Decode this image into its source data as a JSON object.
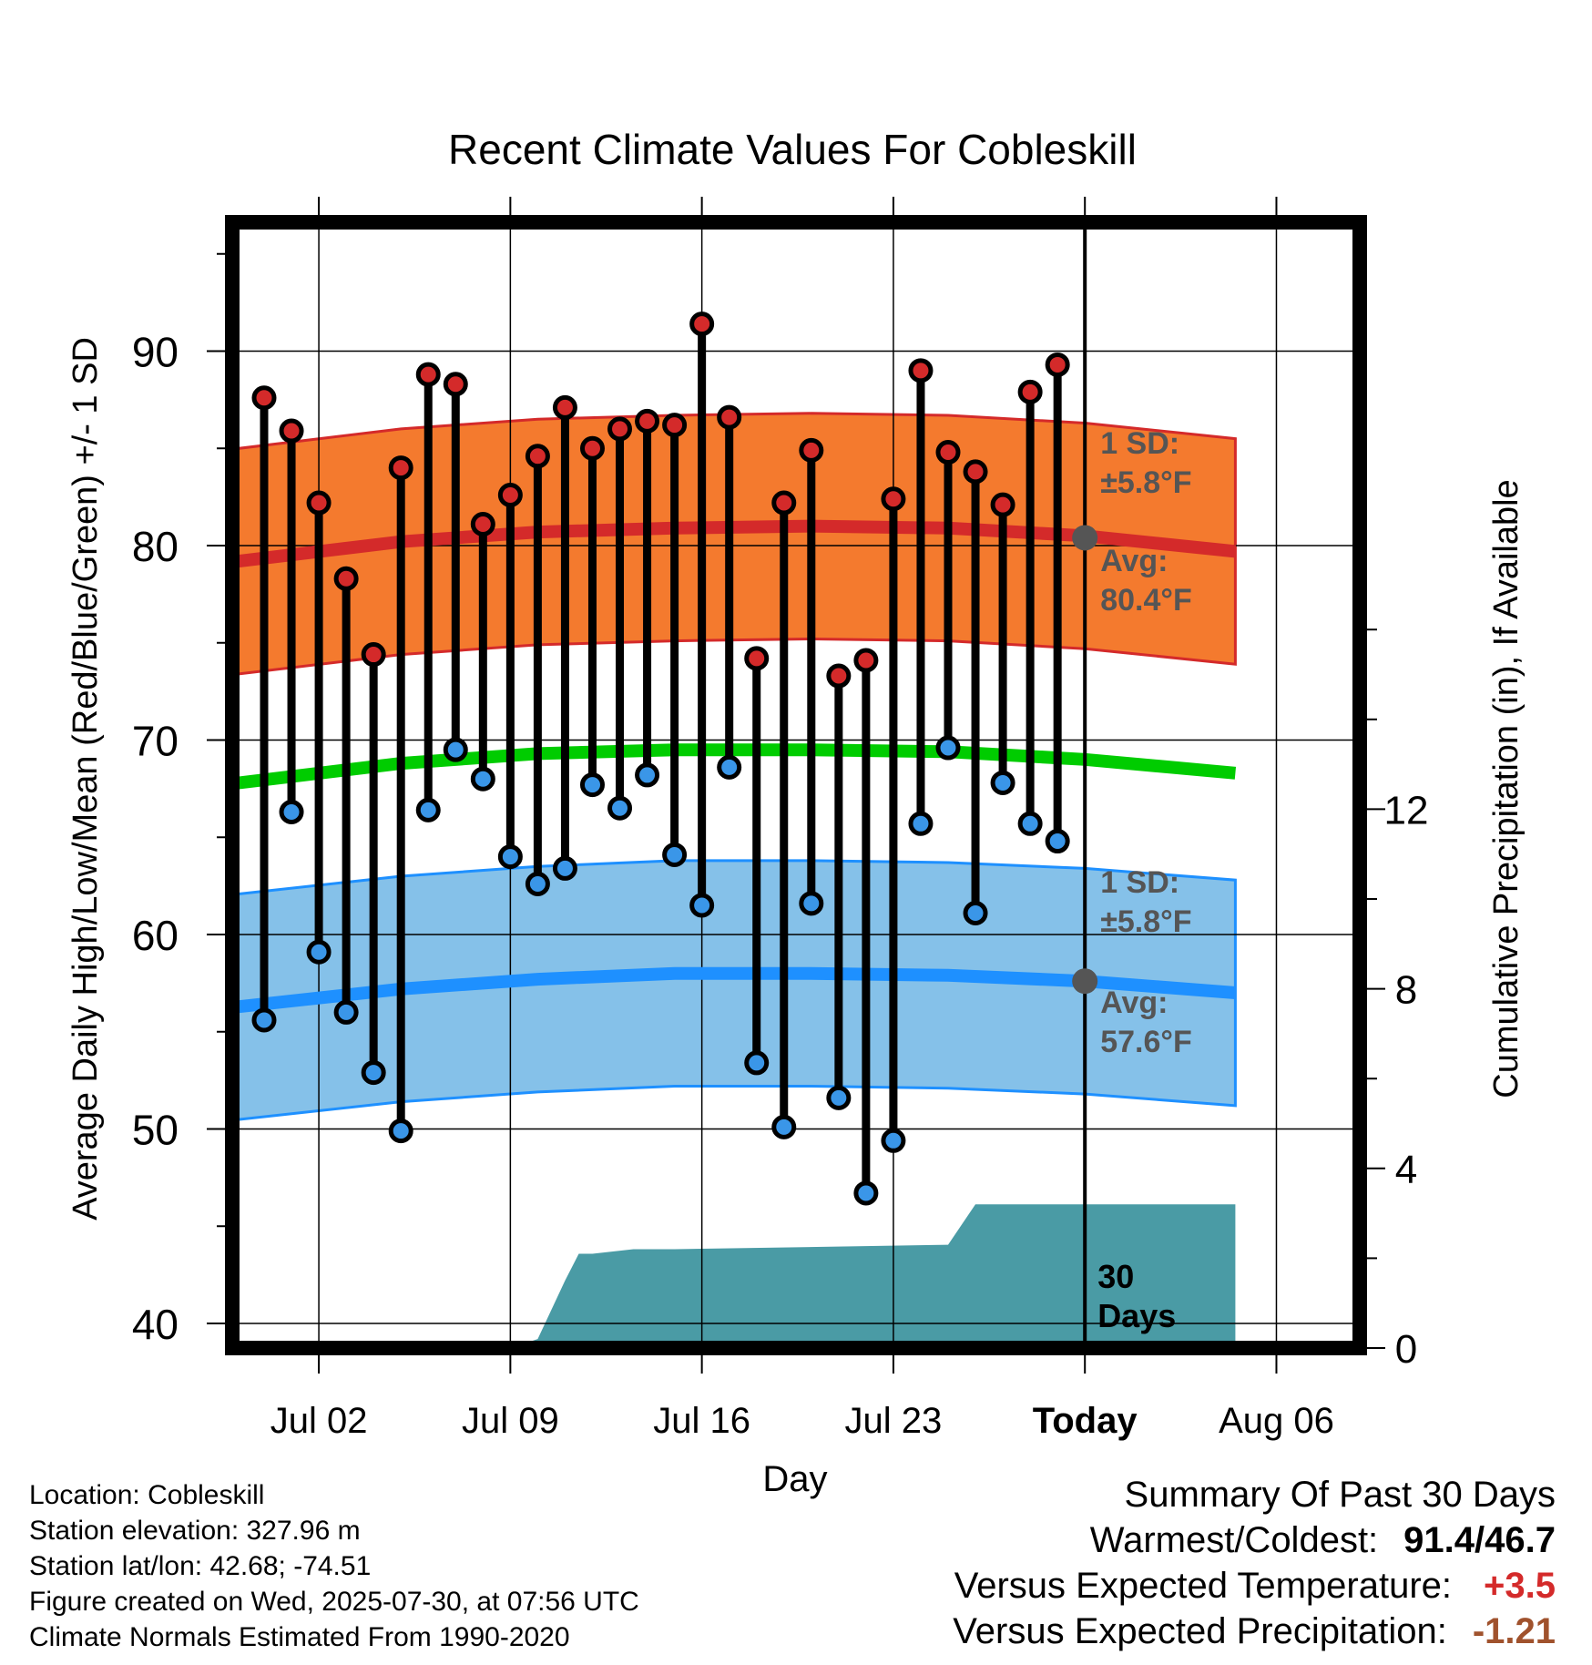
{
  "chart_data": {
    "type": "line",
    "title": "Recent Climate Values For Cobleskill",
    "xlabel": "Day",
    "ylabel": "Average Daily High/Low/Mean (Red/Blue/Green) +/- 1 SD",
    "ylabel_right": "Cumulative Precipitation (in), If Available",
    "x_tick_labels": [
      "Jul 02",
      "Jul 09",
      "Jul 16",
      "Jul 23",
      "Today",
      "Aug 06"
    ],
    "ylim": [
      39,
      97
    ],
    "y_ticks": [
      40,
      50,
      60,
      70,
      80,
      90
    ],
    "y2lim": [
      0,
      17.2
    ],
    "y2_ticks": [
      0,
      4,
      8,
      12
    ],
    "days": [
      "Jun 30",
      "Jul 01",
      "Jul 02",
      "Jul 03",
      "Jul 04",
      "Jul 05",
      "Jul 06",
      "Jul 07",
      "Jul 08",
      "Jul 09",
      "Jul 10",
      "Jul 11",
      "Jul 12",
      "Jul 13",
      "Jul 14",
      "Jul 15",
      "Jul 16",
      "Jul 17",
      "Jul 18",
      "Jul 19",
      "Jul 20",
      "Jul 21",
      "Jul 22",
      "Jul 23",
      "Jul 24",
      "Jul 25",
      "Jul 26",
      "Jul 27",
      "Jul 28",
      "Jul 29"
    ],
    "series": [
      {
        "name": "High",
        "color": "#d42a2a",
        "values": [
          87.6,
          85.9,
          82.2,
          78.3,
          74.4,
          84.0,
          88.8,
          88.3,
          81.1,
          82.6,
          84.6,
          87.1,
          85.0,
          86.0,
          86.4,
          86.2,
          91.4,
          86.6,
          74.2,
          82.2,
          84.9,
          73.3,
          74.1,
          82.4,
          89.0,
          84.8,
          83.8,
          82.1,
          87.9,
          89.3
        ]
      },
      {
        "name": "Low",
        "color": "#3a96e8",
        "values": [
          55.6,
          66.3,
          59.1,
          56.0,
          52.9,
          49.9,
          66.4,
          69.5,
          68.0,
          64.0,
          62.6,
          63.4,
          67.7,
          66.5,
          68.2,
          64.1,
          61.5,
          68.6,
          53.4,
          50.1,
          61.6,
          51.6,
          46.7,
          49.4,
          65.7,
          69.6,
          61.1,
          67.8,
          65.7,
          64.8
        ]
      }
    ],
    "normals": {
      "high": {
        "x": [
          -1.5,
          5,
          10,
          15,
          20,
          25,
          30,
          35.5
        ],
        "avg": [
          79.1,
          80.2,
          80.7,
          80.9,
          81.0,
          80.9,
          80.5,
          79.7
        ],
        "sd": 5.8
      },
      "mean": {
        "x": [
          -1.5,
          5,
          10,
          15,
          20,
          25,
          30,
          35.5
        ],
        "avg": [
          67.7,
          68.8,
          69.3,
          69.5,
          69.5,
          69.4,
          69.0,
          68.3
        ]
      },
      "low": {
        "x": [
          -1.5,
          5,
          10,
          15,
          20,
          25,
          30,
          35.5
        ],
        "avg": [
          56.2,
          57.2,
          57.7,
          58.0,
          58.0,
          57.9,
          57.6,
          57.0
        ],
        "sd": 5.8
      }
    },
    "precip_cumulative": {
      "x": [
        -1.5,
        1.5,
        2,
        9.5,
        10,
        11,
        11.5,
        12,
        13.5,
        15,
        25,
        26,
        31,
        35.5
      ],
      "y": [
        0,
        0,
        0.1,
        0.1,
        0.2,
        1.5,
        2.1,
        2.1,
        2.2,
        2.2,
        2.3,
        3.2,
        3.2,
        3.2
      ]
    },
    "today_index": 30,
    "annotations": {
      "high_sd": [
        "1 SD:",
        "±5.8°F"
      ],
      "high_avg": [
        "Avg:",
        "80.4°F"
      ],
      "low_sd": [
        "1 SD:",
        "±5.8°F"
      ],
      "low_avg": [
        "Avg:",
        "57.6°F"
      ],
      "days_label": [
        "30",
        "Days"
      ]
    },
    "colors": {
      "high_band": "#f47a2e",
      "high_line": "#d42a2a",
      "low_band": "#85c1e9",
      "low_line": "#1e90ff",
      "mean_line": "#00cc00",
      "precip": "#4a9ba5",
      "annotation": "#555555"
    }
  },
  "footer": {
    "location": "Location: Cobleskill",
    "elevation": "Station elevation: 327.96 m",
    "latlon": "Station lat/lon: 42.68; -74.51",
    "created": "Figure created on Wed, 2025-07-30, at 07:56 UTC",
    "normals": "Climate Normals Estimated From 1990-2020"
  },
  "summary": {
    "title": "Summary Of Past 30 Days",
    "warm_cold_label": "Warmest/Coldest:",
    "warm_cold_value": "91.4/46.7",
    "temp_label": "Versus Expected Temperature:",
    "temp_value": "+3.5",
    "precip_label": "Versus Expected Precipitation:",
    "precip_value": "-1.21"
  }
}
